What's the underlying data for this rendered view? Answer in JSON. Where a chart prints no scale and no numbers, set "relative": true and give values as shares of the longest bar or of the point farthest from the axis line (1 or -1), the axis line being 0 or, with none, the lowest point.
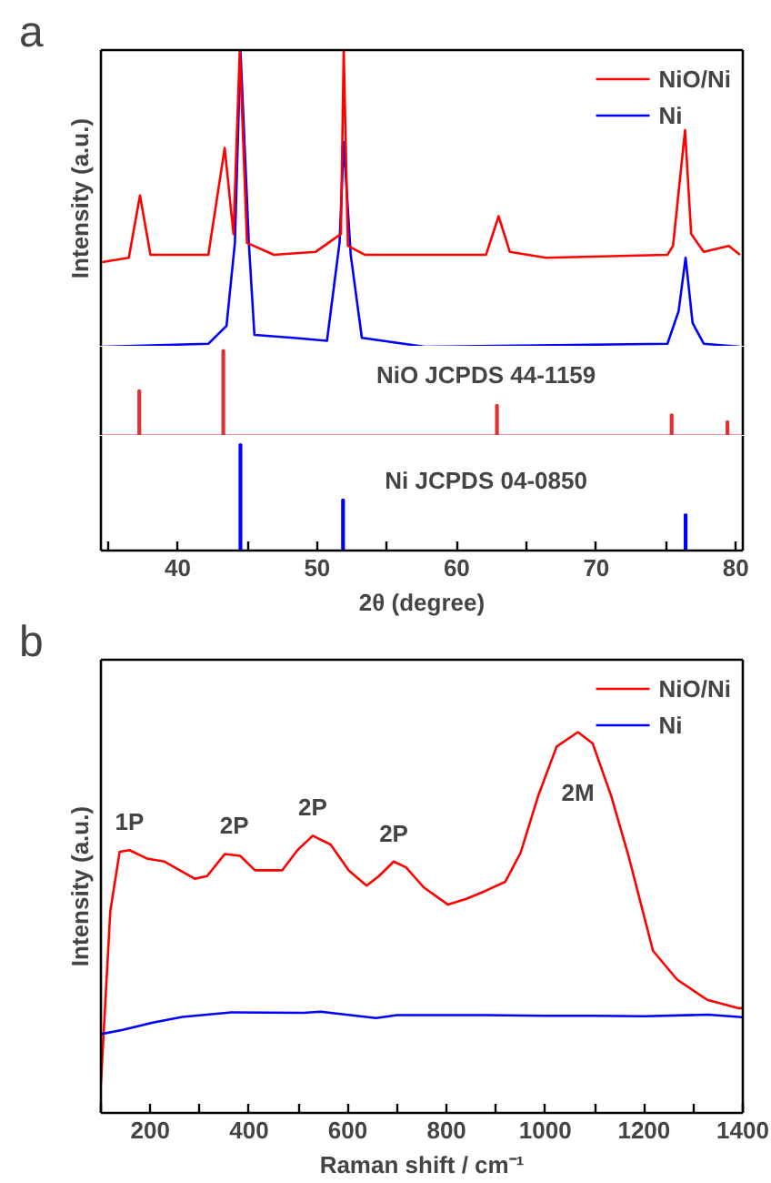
{
  "chart_data": [
    {
      "type": "line",
      "title": "a",
      "ylabel": "Intensity (a.u.)",
      "relative": true,
      "xlim": [
        34.5,
        80.5
      ],
      "tick_labels": false,
      "legend": "top right",
      "series": [
        {
          "name": "Ni",
          "color": "#0000ff",
          "x": [
            34.6,
            42.2,
            43.5,
            44.1,
            44.5,
            45.1,
            45.5,
            48.3,
            50.7,
            51.6,
            51.9,
            52.4,
            53.2,
            57.7,
            75.1,
            75.9,
            76.4,
            76.9,
            77.7,
            80.3
          ],
          "values": [
            0.0,
            0.01,
            0.07,
            0.35,
            1.0,
            0.35,
            0.04,
            0.03,
            0.02,
            0.35,
            0.69,
            0.31,
            0.03,
            0.0,
            0.01,
            0.12,
            0.3,
            0.08,
            0.01,
            0.0
          ]
        },
        {
          "name": "NiO/Ni",
          "color": "#ff0000",
          "x": [
            34.6,
            36.5,
            37.3,
            38.05,
            42.2,
            43.37,
            44.0,
            44.45,
            44.97,
            46.9,
            49.9,
            51.7,
            51.9,
            52.2,
            53.4,
            62.1,
            63.0,
            63.8,
            66.4,
            75.1,
            75.5,
            76.36,
            76.8,
            77.7,
            79.5,
            80.3
          ],
          "values": [
            0.285,
            0.3,
            0.51,
            0.31,
            0.31,
            0.67,
            0.38,
            1.0,
            0.35,
            0.31,
            0.32,
            0.38,
            1.0,
            0.34,
            0.31,
            0.31,
            0.44,
            0.32,
            0.3,
            0.31,
            0.34,
            0.73,
            0.38,
            0.32,
            0.34,
            0.31
          ]
        }
      ]
    },
    {
      "type": "bar",
      "relative": true,
      "xlim": [
        34.5,
        80.5
      ],
      "tick_labels": false,
      "annotations": [
        "NiO JCPDS 44-1159"
      ],
      "x": [
        37.25,
        43.27,
        62.88,
        75.4,
        79.4
      ],
      "values": [
        0.53,
        1.0,
        0.36,
        0.25,
        0.17
      ],
      "color": "#e03030"
    },
    {
      "type": "bar",
      "relative": true,
      "xlim": [
        34.5,
        80.5
      ],
      "xticks": [
        {
          "value": 35,
          "label": null
        },
        40,
        {
          "value": 45,
          "label": null
        },
        50,
        {
          "value": 55,
          "label": null
        },
        60,
        {
          "value": 65,
          "label": null
        },
        70,
        {
          "value": 75,
          "label": null
        },
        80
      ],
      "xlabel": "2θ (degree)",
      "tick_labels": "x",
      "annotations": [
        "Ni JCPDS 04-0850"
      ],
      "x": [
        44.5,
        51.85,
        76.4
      ],
      "values": [
        1.0,
        0.48,
        0.34
      ],
      "color": "#0000ff"
    },
    {
      "type": "line",
      "title": "b",
      "xlabel": "Raman shift / cm⁻¹",
      "ylabel": "Intensity (a.u.)",
      "relative": true,
      "xlim": [
        100,
        1400
      ],
      "xticks": [
        {
          "value": 100,
          "label": null
        },
        200,
        {
          "value": 300,
          "label": null
        },
        400,
        {
          "value": 500,
          "label": null
        },
        600,
        {
          "value": 700,
          "label": null
        },
        800,
        {
          "value": 900,
          "label": null
        },
        1000,
        {
          "value": 1100,
          "label": null
        },
        1200,
        {
          "value": 1300,
          "label": null
        },
        1400
      ],
      "tick_labels": "x",
      "legend": "top right",
      "annotations": [
        {
          "text": "1P",
          "x": 158,
          "y": 0.69
        },
        {
          "text": "2P",
          "x": 370,
          "y": 0.68
        },
        {
          "text": "2P",
          "x": 529,
          "y": 0.728
        },
        {
          "text": "2P",
          "x": 693,
          "y": 0.66
        },
        "2M"
      ],
      "series": [
        {
          "name": "NiO/Ni",
          "color": "#ff0000",
          "x": [
            100,
            119,
            138,
            158,
            193,
            229,
            290,
            315,
            351,
            382,
            412,
            467,
            498,
            529,
            565,
            602,
            638,
            663,
            693,
            718,
            754,
            803,
            840,
            877,
            919,
            950,
            986,
            1023,
            1066,
            1096,
            1133,
            1170,
            1194,
            1218,
            1267,
            1328,
            1392,
            1400
          ],
          "values": [
            0.078,
            0.53,
            0.686,
            0.69,
            0.668,
            0.66,
            0.615,
            0.622,
            0.68,
            0.675,
            0.637,
            0.637,
            0.69,
            0.728,
            0.705,
            0.637,
            0.597,
            0.622,
            0.66,
            0.645,
            0.592,
            0.547,
            0.562,
            0.582,
            0.607,
            0.683,
            0.834,
            0.962,
            1.0,
            0.97,
            0.834,
            0.668,
            0.547,
            0.426,
            0.35,
            0.297,
            0.275,
            0.275
          ]
        },
        {
          "name": "Ni",
          "color": "#0000ff",
          "x": [
            100,
            144,
            205,
            265,
            364,
            510,
            545,
            657,
            700,
            877,
            1000,
            1097,
            1200,
            1330,
            1392,
            1400
          ],
          "values": [
            0.207,
            0.218,
            0.237,
            0.252,
            0.264,
            0.263,
            0.266,
            0.249,
            0.257,
            0.257,
            0.255,
            0.255,
            0.254,
            0.258,
            0.252,
            0.251
          ]
        }
      ]
    }
  ]
}
